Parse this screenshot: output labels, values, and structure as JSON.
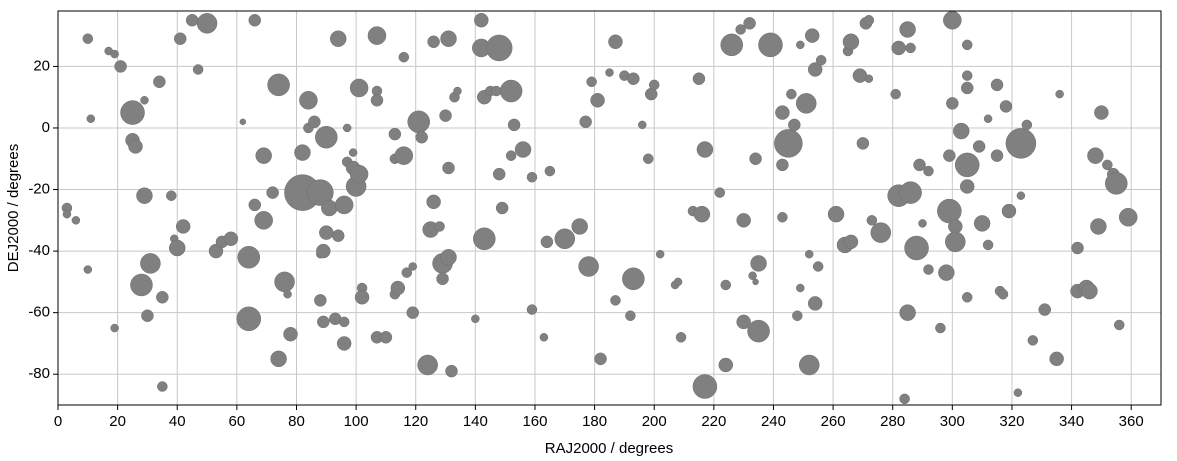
{
  "chart_data": {
    "type": "scatter",
    "xlabel": "RAJ2000 / degrees",
    "ylabel": "DEJ2000 / degrees",
    "xlim": [
      0,
      370
    ],
    "ylim": [
      -90,
      38
    ],
    "xticks": [
      0,
      20,
      40,
      60,
      80,
      100,
      120,
      140,
      160,
      180,
      200,
      220,
      240,
      260,
      280,
      300,
      320,
      340,
      360
    ],
    "yticks": [
      -80,
      -60,
      -40,
      -20,
      0,
      20
    ],
    "grid": true,
    "color": "#808080",
    "x": [
      3,
      3,
      6,
      10,
      10,
      11,
      17,
      19,
      19,
      21,
      25,
      25,
      26,
      29,
      29,
      28,
      30,
      31,
      34,
      35,
      35,
      38,
      39,
      40,
      41,
      42,
      45,
      47,
      50,
      53,
      55,
      58,
      62,
      64,
      64,
      66,
      66,
      69,
      69,
      72,
      74,
      74,
      76,
      77,
      78,
      82,
      82,
      84,
      84,
      86,
      88,
      88,
      88,
      89,
      89,
      90,
      90,
      91,
      93,
      94,
      94,
      96,
      96,
      96,
      97,
      97,
      99,
      99,
      100,
      101,
      101,
      102,
      102,
      107,
      107,
      107,
      107,
      110,
      113,
      113,
      113,
      114,
      116,
      116,
      117,
      119,
      119,
      121,
      122,
      124,
      125,
      126,
      126,
      128,
      129,
      129,
      130,
      131,
      131,
      131,
      132,
      133,
      134,
      140,
      142,
      142,
      143,
      143,
      145,
      147,
      148,
      148,
      149,
      152,
      152,
      153,
      156,
      159,
      159,
      163,
      164,
      165,
      170,
      175,
      177,
      178,
      179,
      181,
      182,
      185,
      187,
      187,
      190,
      192,
      193,
      193,
      196,
      198,
      199,
      200,
      202,
      207,
      208,
      209,
      213,
      215,
      216,
      217,
      217,
      222,
      224,
      224,
      226,
      229,
      230,
      230,
      232,
      233,
      234,
      234,
      235,
      235,
      239,
      243,
      243,
      243,
      245,
      246,
      247,
      248,
      249,
      249,
      251,
      252,
      252,
      253,
      254,
      254,
      255,
      256,
      261,
      264,
      265,
      266,
      266,
      269,
      270,
      271,
      272,
      272,
      273,
      276,
      281,
      282,
      282,
      284,
      285,
      285,
      286,
      286,
      288,
      289,
      290,
      292,
      292,
      296,
      298,
      299,
      299,
      300,
      300,
      301,
      301,
      303,
      305,
      305,
      305,
      305,
      305,
      305,
      309,
      310,
      312,
      312,
      315,
      315,
      316,
      317,
      318,
      319,
      322,
      323,
      323,
      325,
      327,
      331,
      335,
      336,
      342,
      342,
      345,
      346,
      348,
      349,
      350,
      352,
      354,
      355,
      356,
      359
    ],
    "y": [
      -26,
      -28,
      -30,
      29,
      -46,
      3,
      25,
      24,
      -65,
      20,
      5,
      -4,
      -6,
      9,
      -22,
      -51,
      -61,
      -44,
      15,
      -55,
      -84,
      -22,
      -36,
      -39,
      29,
      -32,
      35,
      19,
      34,
      -40,
      -37,
      -36,
      2,
      -42,
      -62,
      35,
      -25,
      -9,
      -30,
      -21,
      14,
      -75,
      -50,
      -54,
      -67,
      -8,
      -21,
      0,
      9,
      2,
      -56,
      -41,
      -21,
      -40,
      -63,
      -3,
      -34,
      -26,
      -62,
      29,
      -35,
      -25,
      -70,
      -63,
      0,
      -11,
      -8,
      -13,
      -19,
      -15,
      13,
      -52,
      -55,
      30,
      12,
      9,
      -68,
      -68,
      -2,
      -10,
      -54,
      -52,
      -9,
      23,
      -47,
      -45,
      -60,
      2,
      -3,
      -77,
      -33,
      -24,
      28,
      -32,
      -44,
      -49,
      4,
      29,
      -13,
      -42,
      -79,
      10,
      12,
      -62,
      26,
      35,
      -36,
      10,
      12,
      12,
      26,
      -15,
      -26,
      -9,
      12,
      1,
      -7,
      -16,
      -59,
      -68,
      -37,
      -14,
      -36,
      -32,
      2,
      -45,
      15,
      9,
      -75,
      18,
      -56,
      28,
      17,
      -61,
      16,
      -49,
      1,
      -10,
      11,
      14,
      -41,
      -51,
      -50,
      -68,
      -27,
      16,
      -28,
      -84,
      -7,
      -21,
      -51,
      -77,
      27,
      32,
      -30,
      -63,
      34,
      -48,
      -10,
      -50,
      -66,
      -44,
      27,
      5,
      -12,
      -29,
      -5,
      11,
      1,
      -61,
      27,
      -52,
      8,
      -77,
      -41,
      30,
      19,
      -57,
      -45,
      22,
      -28,
      -38,
      25,
      28,
      -37,
      17,
      -5,
      34,
      35,
      16,
      -30,
      -34,
      11,
      -22,
      26,
      -88,
      32,
      -60,
      -21,
      26,
      -39,
      -12,
      -31,
      -14,
      -46,
      -65,
      -47,
      -27,
      -9,
      35,
      8,
      -32,
      -37,
      -1,
      -12,
      27,
      13,
      17,
      -19,
      -55,
      -6,
      -31,
      3,
      -38,
      -9,
      14,
      -53,
      -54,
      7,
      -27,
      -86,
      -22,
      -5,
      1,
      -69,
      -59,
      -75,
      11,
      -39,
      -53,
      -52,
      -53,
      -9,
      -32,
      5,
      -12,
      -15,
      -18,
      -64,
      -29
    ],
    "sizes": [
      5,
      4,
      4,
      5,
      4,
      4,
      4,
      4,
      4,
      6,
      12,
      7,
      7,
      4,
      8,
      11,
      6,
      10,
      6,
      6,
      5,
      5,
      4,
      8,
      6,
      7,
      6,
      5,
      10,
      7,
      6,
      7,
      3,
      11,
      12,
      6,
      6,
      8,
      9,
      6,
      11,
      8,
      10,
      4,
      7,
      8,
      18,
      5,
      9,
      6,
      6,
      4,
      13,
      7,
      6,
      11,
      7,
      8,
      6,
      8,
      6,
      9,
      7,
      5,
      4,
      5,
      4,
      7,
      10,
      9,
      9,
      5,
      7,
      9,
      5,
      6,
      6,
      6,
      6,
      5,
      5,
      7,
      9,
      5,
      5,
      4,
      6,
      11,
      6,
      10,
      8,
      7,
      6,
      5,
      10,
      6,
      6,
      8,
      6,
      8,
      6,
      5,
      4,
      4,
      9,
      7,
      11,
      7,
      5,
      5,
      13,
      6,
      6,
      5,
      11,
      6,
      8,
      5,
      5,
      4,
      6,
      5,
      10,
      8,
      6,
      10,
      5,
      7,
      6,
      4,
      5,
      7,
      5,
      5,
      6,
      11,
      4,
      5,
      6,
      5,
      4,
      4,
      4,
      5,
      5,
      6,
      8,
      12,
      8,
      5,
      5,
      7,
      11,
      5,
      7,
      7,
      6,
      4,
      6,
      3,
      11,
      8,
      12,
      7,
      6,
      5,
      14,
      5,
      6,
      5,
      4,
      4,
      10,
      10,
      4,
      7,
      7,
      7,
      5,
      5,
      8,
      8,
      5,
      8,
      7,
      7,
      6,
      6,
      5,
      4,
      5,
      10,
      5,
      11,
      7,
      5,
      8,
      8,
      11,
      5,
      12,
      6,
      4,
      5,
      5,
      5,
      8,
      12,
      6,
      9,
      6,
      7,
      10,
      8,
      12,
      5,
      6,
      5,
      7,
      5,
      6,
      8,
      4,
      5,
      6,
      6,
      5,
      5,
      6,
      7,
      4,
      4,
      15,
      5,
      5,
      6,
      7,
      4,
      6,
      7,
      8,
      8,
      8,
      8,
      7,
      5,
      6,
      11,
      5,
      9
    ]
  }
}
